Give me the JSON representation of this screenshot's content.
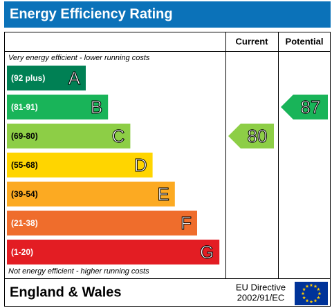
{
  "title": "Energy Efficiency Rating",
  "columns": [
    "Current",
    "Potential"
  ],
  "top_note": "Very energy efficient - lower running costs",
  "bottom_note": "Not energy efficient - higher running costs",
  "bands": [
    {
      "range": "(92 plus)",
      "letter": "A",
      "color": "#008054"
    },
    {
      "range": "(81-91)",
      "letter": "B",
      "color": "#19b459"
    },
    {
      "range": "(69-80)",
      "letter": "C",
      "color": "#8dce46"
    },
    {
      "range": "(55-68)",
      "letter": "D",
      "color": "#ffd500"
    },
    {
      "range": "(39-54)",
      "letter": "E",
      "color": "#fcaa22"
    },
    {
      "range": "(21-38)",
      "letter": "F",
      "color": "#ef6d2c"
    },
    {
      "range": "(1-20)",
      "letter": "G",
      "color": "#e31d23"
    }
  ],
  "current": {
    "value": 80,
    "color": "#8dce46"
  },
  "potential": {
    "value": 87,
    "color": "#19b459"
  },
  "footer": {
    "region": "England & Wales",
    "directive": [
      "EU Directive",
      "2002/91/EC"
    ]
  }
}
